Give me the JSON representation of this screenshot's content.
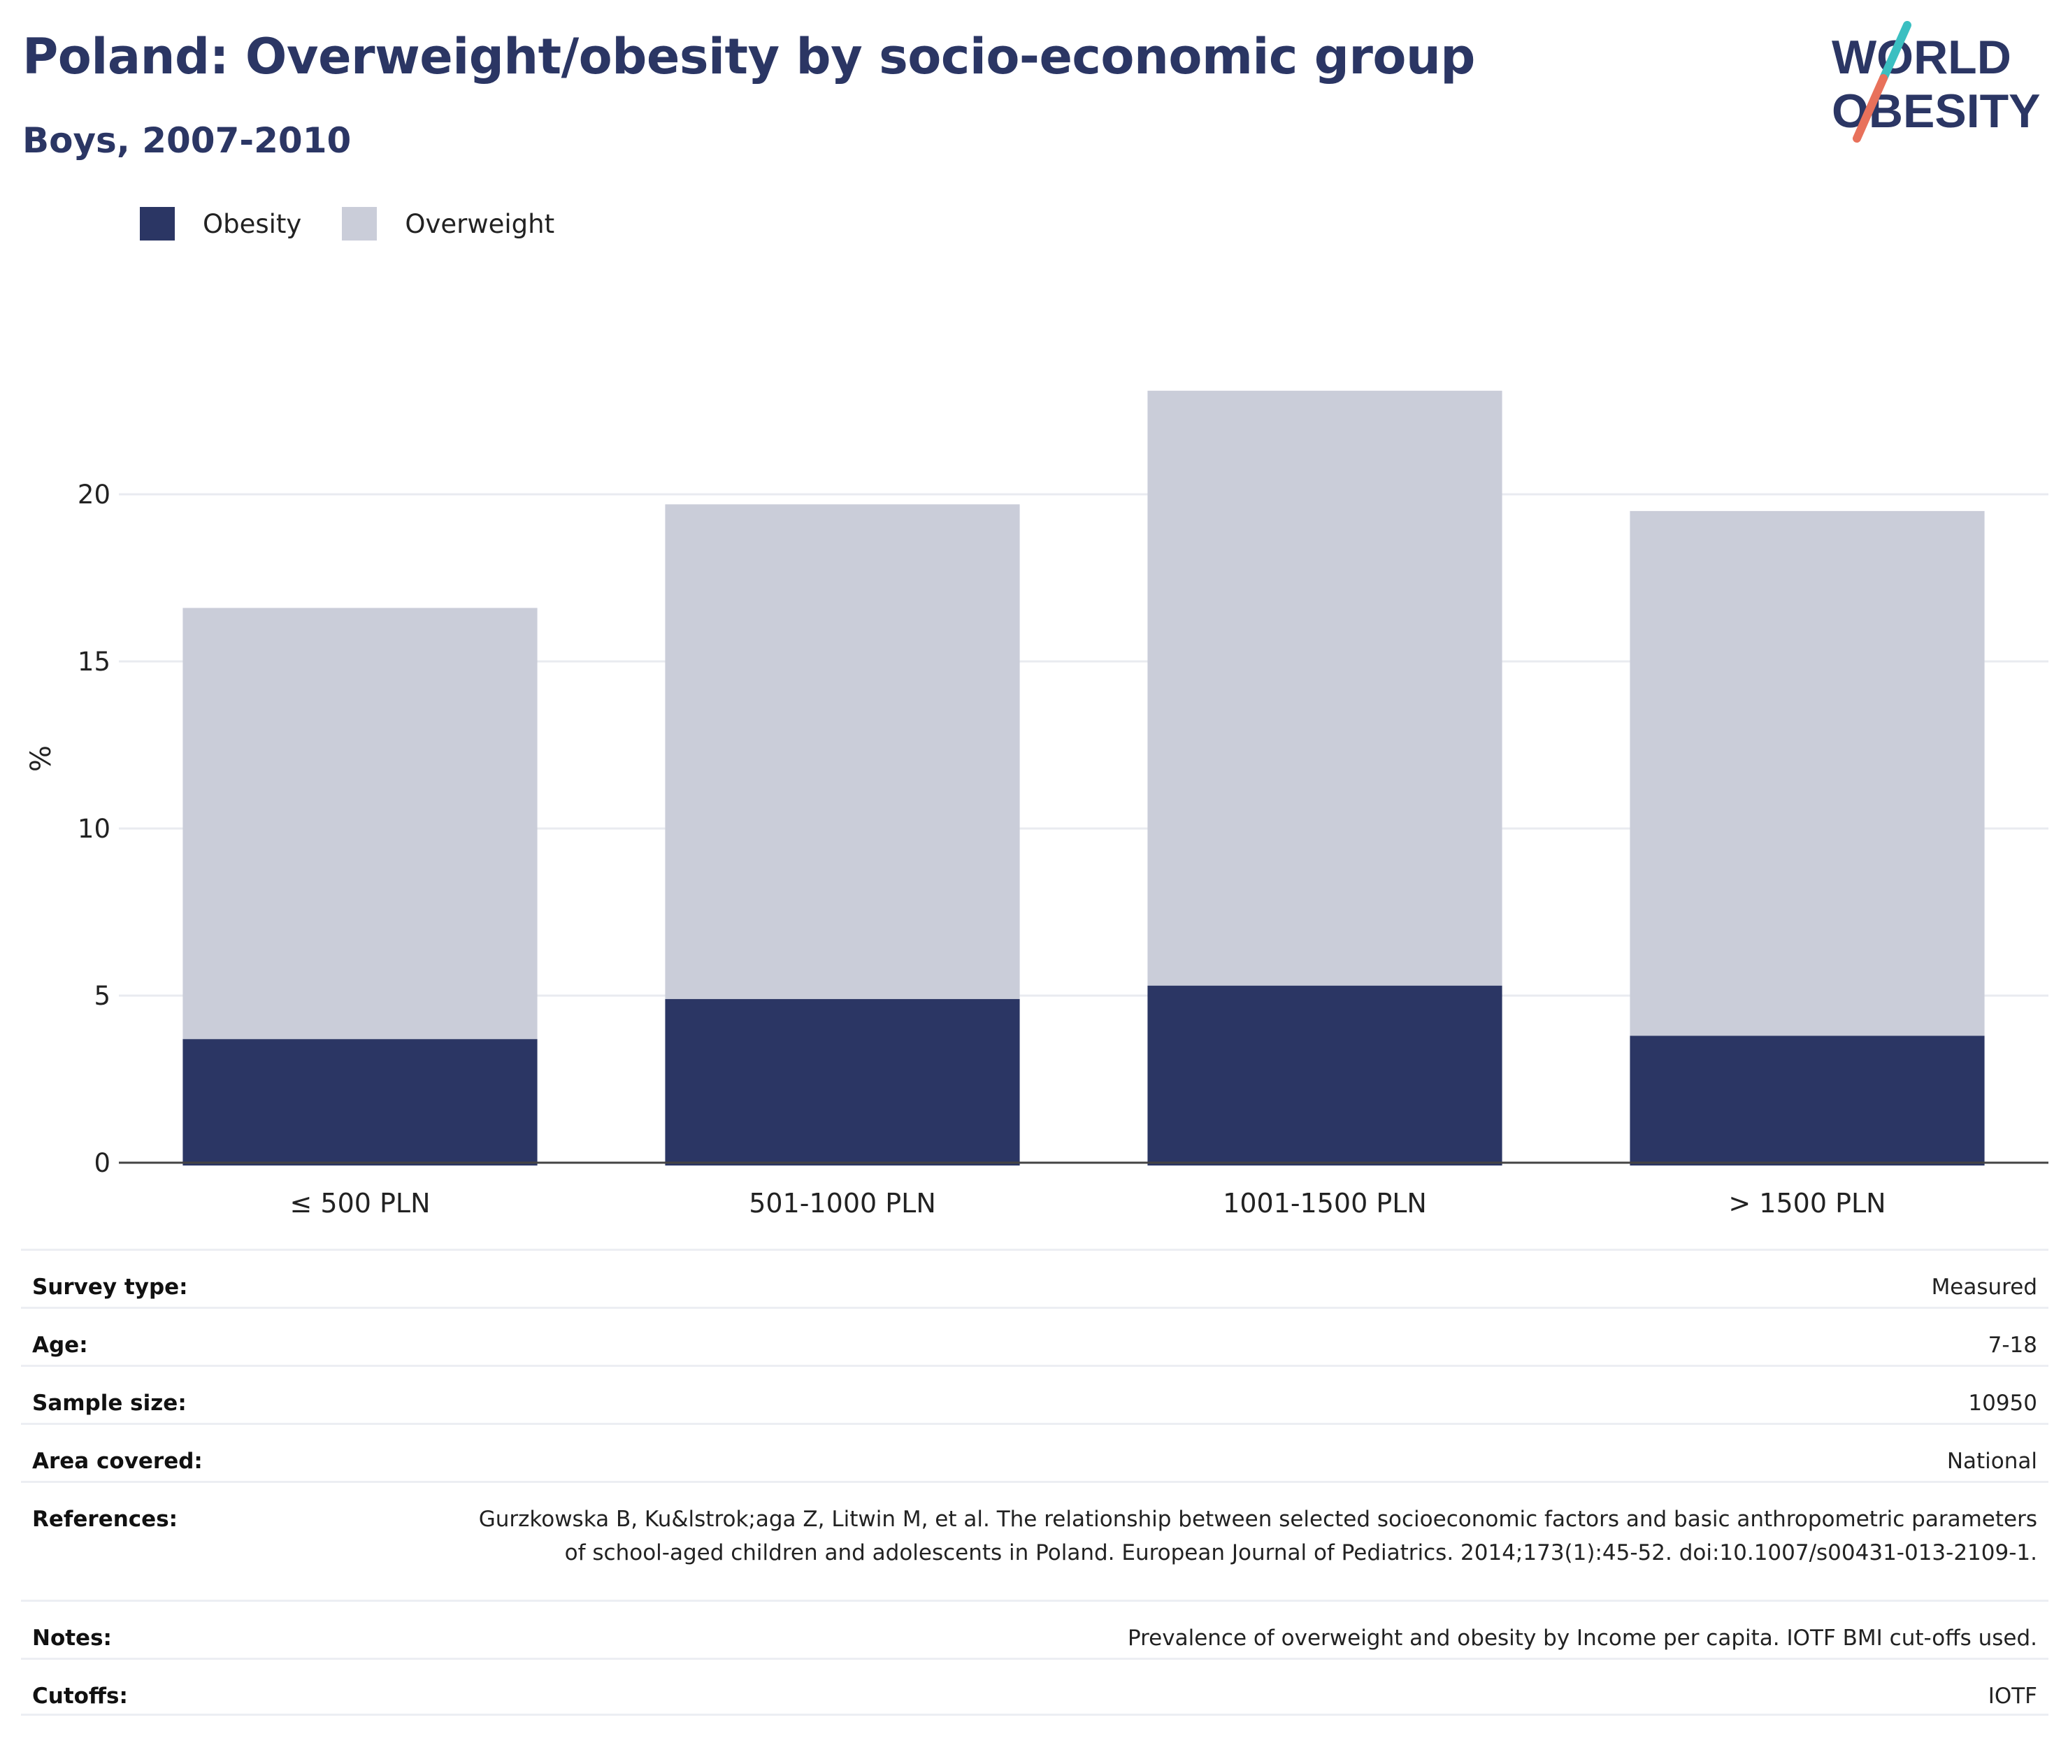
{
  "header": {
    "title": "Poland: Overweight/obesity by socio-economic group",
    "subtitle": "Boys, 2007-2010"
  },
  "logo": {
    "line1": "WORLD",
    "line2": "OBESITY",
    "colors": {
      "text": "#2b3664",
      "slash_top": "#3bbfc1",
      "slash_bottom": "#e8715b"
    }
  },
  "legend": {
    "items": [
      {
        "label": "Obesity",
        "color": "#2b3664"
      },
      {
        "label": "Overweight",
        "color": "#cacdd9"
      }
    ],
    "placement": "top-left"
  },
  "chart_data": {
    "type": "bar",
    "stacked": true,
    "categories": [
      "≤ 500 PLN",
      "501-1000 PLN",
      "1001-1500 PLN",
      "> 1500 PLN"
    ],
    "series": [
      {
        "name": "Obesity",
        "values": [
          3.7,
          4.9,
          5.3,
          3.8
        ],
        "color": "#2b3664"
      },
      {
        "name": "Overweight",
        "values": [
          12.9,
          14.8,
          17.8,
          15.7
        ],
        "color": "#cacdd9"
      }
    ],
    "ylabel": "%",
    "xlabel": "",
    "ylim": [
      0,
      24
    ],
    "yticks": [
      0,
      5,
      10,
      15,
      20
    ],
    "grid": true
  },
  "info": {
    "rows": [
      {
        "label": "Survey type:",
        "value": "Measured"
      },
      {
        "label": "Age:",
        "value": "7-18"
      },
      {
        "label": "Sample size:",
        "value": "10950"
      },
      {
        "label": "Area covered:",
        "value": "National"
      },
      {
        "label": "References:",
        "value": "Gurzkowska B, Ku&lstrok;aga Z, Litwin M, et al. The relationship between selected socioeconomic factors and basic anthropometric parameters of school-aged children and adolescents in Poland. European Journal of Pediatrics. 2014;173(1):45-52. doi:10.1007/s00431-013-2109-1."
      },
      {
        "label": "Notes:",
        "value": "Prevalence of overweight and obesity by Income per capita. IOTF BMI cut-offs used."
      },
      {
        "label": "Cutoffs:",
        "value": "IOTF"
      }
    ]
  }
}
